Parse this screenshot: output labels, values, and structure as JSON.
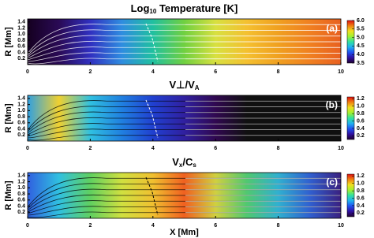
{
  "chart_data": [
    {
      "type": "contour",
      "title_parts": [
        {
          "text": "Log"
        },
        {
          "sub": "10"
        },
        {
          "text": " Temperature [K]"
        }
      ],
      "label": "(a)",
      "ylabel": "R [Mm]",
      "xlim": [
        0,
        10
      ],
      "xticks": [
        0,
        2,
        4,
        6,
        8,
        10
      ],
      "ylim": [
        0,
        1.5
      ],
      "yticks": [
        0.2,
        0.4,
        0.6,
        0.8,
        {
          "value": 1,
          "label": "1.0"
        },
        1.2,
        1.4
      ],
      "field_colors": [
        "#150020",
        "#2a0a55",
        "#3030c0",
        "#2f8ce0",
        "#20c0a0",
        "#70d040",
        "#d8e040",
        "#f4c030",
        "#f0a020",
        "#f08020",
        "#e86020"
      ],
      "colorbar": {
        "lim": [
          3.5,
          6.0
        ],
        "ticks": [
          {
            "value": 3.5,
            "label": "3.5"
          },
          {
            "value": 4,
            "label": "4.0"
          },
          {
            "value": 4.5,
            "label": "4.5"
          },
          {
            "value": 5,
            "label": "5.0"
          },
          {
            "value": 5.5,
            "label": "5.5"
          },
          {
            "value": 6,
            "label": "6.0"
          }
        ]
      }
    },
    {
      "type": "contour",
      "title_parts": [
        {
          "text": "V⊥/V"
        },
        {
          "sub": "A"
        }
      ],
      "label": "(b)",
      "ylabel": "R [Mm]",
      "xlim": [
        0,
        10
      ],
      "xticks": [
        0,
        2,
        4,
        6,
        8,
        10
      ],
      "ylim": [
        0,
        1.5
      ],
      "yticks": [
        0.2,
        0.4,
        0.6,
        0.8,
        {
          "value": 1,
          "label": "1.0"
        },
        1.2,
        1.4
      ],
      "field_colors": [
        "#30a0e0",
        "#f0d030",
        "#30c0e0",
        "#2080e0",
        "#2040d0",
        "#3020a0",
        "#300850",
        "#101010",
        "#101010",
        "#101010",
        "#101010"
      ],
      "colorbar": {
        "lim": [
          0.1,
          1.25
        ],
        "ticks": [
          0.2,
          0.4,
          0.6,
          0.8,
          {
            "value": 1,
            "label": "1.0"
          },
          1.2
        ]
      }
    },
    {
      "type": "contour",
      "title_parts": [
        {
          "text": "V"
        },
        {
          "sub": "x"
        },
        {
          "text": "/C"
        },
        {
          "sub": "s"
        }
      ],
      "label": "(c)",
      "ylabel": "R [Mm]",
      "xlabel": "X [Mm]",
      "xlim": [
        0,
        10
      ],
      "xticks": [
        0,
        2,
        4,
        6,
        8,
        10
      ],
      "ylim": [
        0,
        1.5
      ],
      "yticks": [
        0.2,
        0.4,
        0.6,
        0.8,
        {
          "value": 1,
          "label": "1.0"
        },
        1.2,
        1.4
      ],
      "field_colors": [
        "#3060e0",
        "#30c0e0",
        "#60d060",
        "#d0e040",
        "#f0c030",
        "#f06020",
        "#d0d040",
        "#50c870",
        "#30b0d0",
        "#3060d0",
        "#3a2080"
      ],
      "colorbar": {
        "lim": [
          0.1,
          1.25
        ],
        "ticks": [
          0.2,
          0.4,
          0.6,
          0.8,
          {
            "value": 1,
            "label": "1.0"
          },
          1.2
        ]
      }
    }
  ],
  "colorbar_colors": [
    "#200030",
    "#3010a0",
    "#2050f0",
    "#20b0f0",
    "#30e0a0",
    "#a0f030",
    "#f0e020",
    "#f08010",
    "#e01010"
  ]
}
